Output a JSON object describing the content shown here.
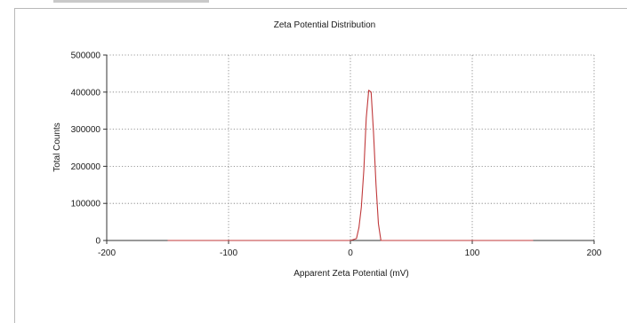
{
  "chart_data": {
    "type": "line",
    "title": "Zeta Potential Distribution",
    "xlabel": "Apparent Zeta Potential (mV)",
    "ylabel": "Total Counts",
    "xlim": [
      -200,
      200
    ],
    "ylim": [
      0,
      500000
    ],
    "x_ticks": [
      "-200",
      "-100",
      "0",
      "100",
      "200"
    ],
    "y_ticks": [
      "0",
      "100000",
      "200000",
      "300000",
      "400000",
      "500000"
    ],
    "grid": true,
    "series": [
      {
        "color": "#c0393b",
        "x": [
          -150,
          0,
          5,
          7,
          9,
          11,
          13,
          15,
          17,
          19,
          21,
          23,
          25,
          150
        ],
        "y": [
          0,
          0,
          5000,
          35000,
          90000,
          190000,
          330000,
          405000,
          400000,
          290000,
          150000,
          45000,
          0,
          0
        ]
      }
    ]
  }
}
